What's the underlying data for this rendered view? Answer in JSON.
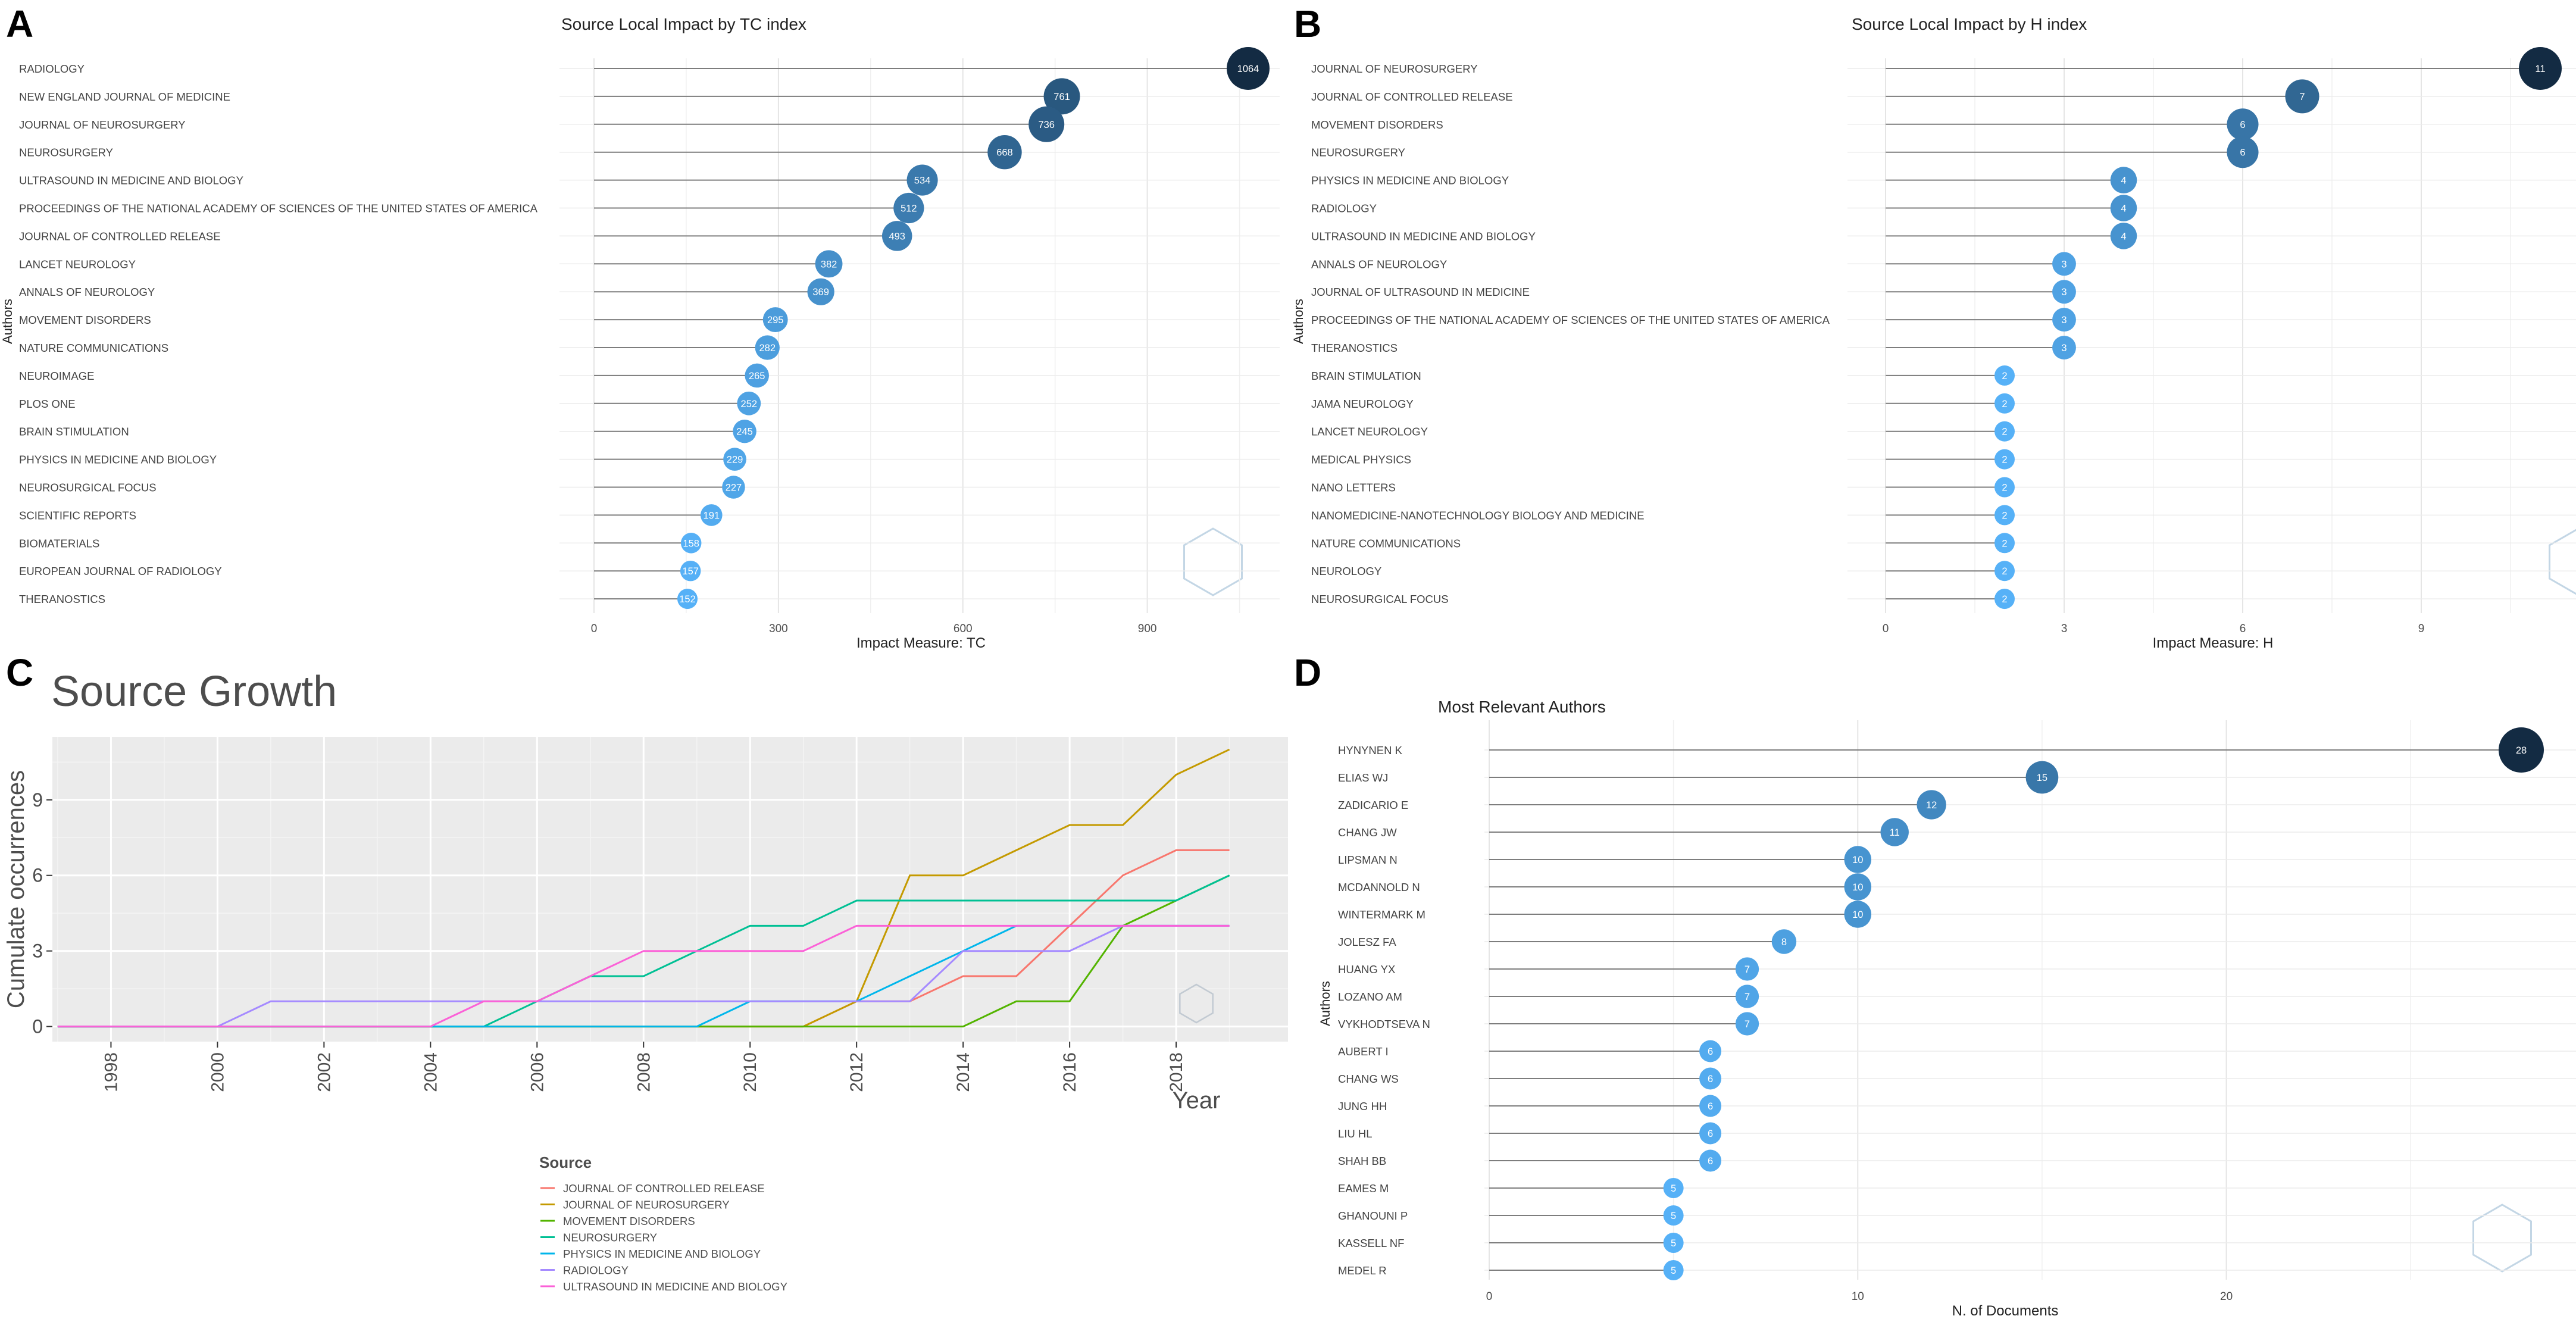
{
  "panel_letters": {
    "a": "A",
    "b": "B",
    "c": "C",
    "d": "D"
  },
  "chart_data": [
    {
      "panel": "A",
      "type": "lollipop",
      "orientation": "horizontal",
      "title": "Source Local Impact by TC index",
      "xlabel": "Impact Measure: TC",
      "ylabel": "Authors",
      "xlim": [
        0,
        1064
      ],
      "xticks": [
        0,
        300,
        600,
        900
      ],
      "categories": [
        "RADIOLOGY",
        "NEW ENGLAND JOURNAL OF MEDICINE",
        "JOURNAL OF NEUROSURGERY",
        "NEUROSURGERY",
        "ULTRASOUND IN MEDICINE AND BIOLOGY",
        "PROCEEDINGS OF THE NATIONAL ACADEMY OF SCIENCES OF THE UNITED STATES OF AMERICA",
        "JOURNAL OF CONTROLLED RELEASE",
        "LANCET NEUROLOGY",
        "ANNALS OF NEUROLOGY",
        "MOVEMENT DISORDERS",
        "NATURE COMMUNICATIONS",
        "NEUROIMAGE",
        "PLOS ONE",
        "BRAIN STIMULATION",
        "PHYSICS IN MEDICINE AND BIOLOGY",
        "NEUROSURGICAL FOCUS",
        "SCIENTIFIC REPORTS",
        "BIOMATERIALS",
        "EUROPEAN JOURNAL OF RADIOLOGY",
        "THERANOSTICS"
      ],
      "values": [
        1064,
        761,
        736,
        668,
        534,
        512,
        493,
        382,
        369,
        295,
        282,
        265,
        252,
        245,
        229,
        227,
        191,
        158,
        157,
        152
      ]
    },
    {
      "panel": "B",
      "type": "lollipop",
      "orientation": "horizontal",
      "title": "Source Local Impact by H index",
      "xlabel": "Impact Measure: H",
      "ylabel": "Authors",
      "xlim": [
        0,
        11
      ],
      "xticks": [
        0,
        3,
        6,
        9
      ],
      "categories": [
        "JOURNAL OF NEUROSURGERY",
        "JOURNAL OF CONTROLLED RELEASE",
        "MOVEMENT DISORDERS",
        "NEUROSURGERY",
        "PHYSICS IN MEDICINE AND BIOLOGY",
        "RADIOLOGY",
        "ULTRASOUND IN MEDICINE AND BIOLOGY",
        "ANNALS OF NEUROLOGY",
        "JOURNAL OF ULTRASOUND IN MEDICINE",
        "PROCEEDINGS OF THE NATIONAL ACADEMY OF SCIENCES OF THE UNITED STATES OF AMERICA",
        "THERANOSTICS",
        "BRAIN STIMULATION",
        "JAMA NEUROLOGY",
        "LANCET NEUROLOGY",
        "MEDICAL PHYSICS",
        "NANO LETTERS",
        "NANOMEDICINE-NANOTECHNOLOGY BIOLOGY AND MEDICINE",
        "NATURE COMMUNICATIONS",
        "NEUROLOGY",
        "NEUROSURGICAL FOCUS"
      ],
      "values": [
        11,
        7,
        6,
        6,
        4,
        4,
        4,
        3,
        3,
        3,
        3,
        2,
        2,
        2,
        2,
        2,
        2,
        2,
        2,
        2
      ]
    },
    {
      "panel": "C",
      "type": "line",
      "step": true,
      "title": "Source Growth",
      "xlabel": "Year",
      "ylabel": "Cumulate occurrences",
      "legend_title": "Source",
      "x": [
        1997,
        1998,
        1999,
        2000,
        2001,
        2002,
        2003,
        2004,
        2005,
        2006,
        2007,
        2008,
        2009,
        2010,
        2011,
        2012,
        2013,
        2014,
        2015,
        2016,
        2017,
        2018,
        2019
      ],
      "xlim": [
        1996.9,
        2020.1
      ],
      "ylim": [
        -0.6,
        11.5
      ],
      "xticks": [
        1998,
        2000,
        2002,
        2004,
        2006,
        2008,
        2010,
        2012,
        2014,
        2016,
        2018
      ],
      "yticks": [
        0,
        3,
        6,
        9
      ],
      "series": [
        {
          "name": "JOURNAL OF CONTROLLED RELEASE",
          "color": "#F8766D",
          "values": [
            0,
            0,
            0,
            0,
            0,
            0,
            0,
            0,
            0,
            0,
            0,
            0,
            0,
            0,
            0,
            1,
            1,
            2,
            2,
            4,
            6,
            7,
            7
          ]
        },
        {
          "name": "JOURNAL OF NEUROSURGERY",
          "color": "#C49A00",
          "values": [
            0,
            0,
            0,
            0,
            0,
            0,
            0,
            0,
            0,
            0,
            0,
            0,
            0,
            0,
            0,
            1,
            6,
            6,
            7,
            8,
            8,
            10,
            11
          ]
        },
        {
          "name": "MOVEMENT DISORDERS",
          "color": "#53B400",
          "values": [
            0,
            0,
            0,
            0,
            0,
            0,
            0,
            0,
            0,
            0,
            0,
            0,
            0,
            0,
            0,
            0,
            0,
            0,
            1,
            1,
            4,
            5,
            6
          ]
        },
        {
          "name": "NEUROSURGERY",
          "color": "#00C094",
          "values": [
            0,
            0,
            0,
            0,
            0,
            0,
            0,
            0,
            0,
            1,
            2,
            2,
            3,
            4,
            4,
            5,
            5,
            5,
            5,
            5,
            5,
            5,
            6
          ]
        },
        {
          "name": "PHYSICS IN MEDICINE AND BIOLOGY",
          "color": "#00B6EB",
          "values": [
            0,
            0,
            0,
            0,
            0,
            0,
            0,
            0,
            0,
            0,
            0,
            0,
            0,
            1,
            1,
            1,
            2,
            3,
            4,
            4,
            4,
            4,
            4
          ]
        },
        {
          "name": "RADIOLOGY",
          "color": "#A58AFF",
          "values": [
            0,
            0,
            0,
            0,
            1,
            1,
            1,
            1,
            1,
            1,
            1,
            1,
            1,
            1,
            1,
            1,
            1,
            3,
            3,
            3,
            4,
            4,
            4
          ]
        },
        {
          "name": "ULTRASOUND IN MEDICINE AND BIOLOGY",
          "color": "#FB61D7",
          "values": [
            0,
            0,
            0,
            0,
            0,
            0,
            0,
            0,
            1,
            1,
            2,
            3,
            3,
            3,
            3,
            4,
            4,
            4,
            4,
            4,
            4,
            4,
            4
          ]
        }
      ]
    },
    {
      "panel": "D",
      "type": "lollipop",
      "orientation": "horizontal",
      "title": "Most Relevant Authors",
      "xlabel": "N. of Documents",
      "ylabel": "Authors",
      "xlim": [
        0,
        28
      ],
      "xticks": [
        0,
        10,
        20
      ],
      "categories": [
        "HYNYNEN K",
        "ELIAS WJ",
        "ZADICARIO E",
        "CHANG JW",
        "LIPSMAN N",
        "MCDANNOLD N",
        "WINTERMARK M",
        "JOLESZ FA",
        "HUANG YX",
        "LOZANO AM",
        "VYKHODTSEVA N",
        "AUBERT I",
        "CHANG WS",
        "JUNG HH",
        "LIU HL",
        "SHAH BB",
        "EAMES M",
        "GHANOUNI P",
        "KASSELL NF",
        "MEDEL R"
      ],
      "values": [
        28,
        15,
        12,
        11,
        10,
        10,
        10,
        8,
        7,
        7,
        7,
        6,
        6,
        6,
        6,
        6,
        5,
        5,
        5,
        5
      ]
    }
  ]
}
